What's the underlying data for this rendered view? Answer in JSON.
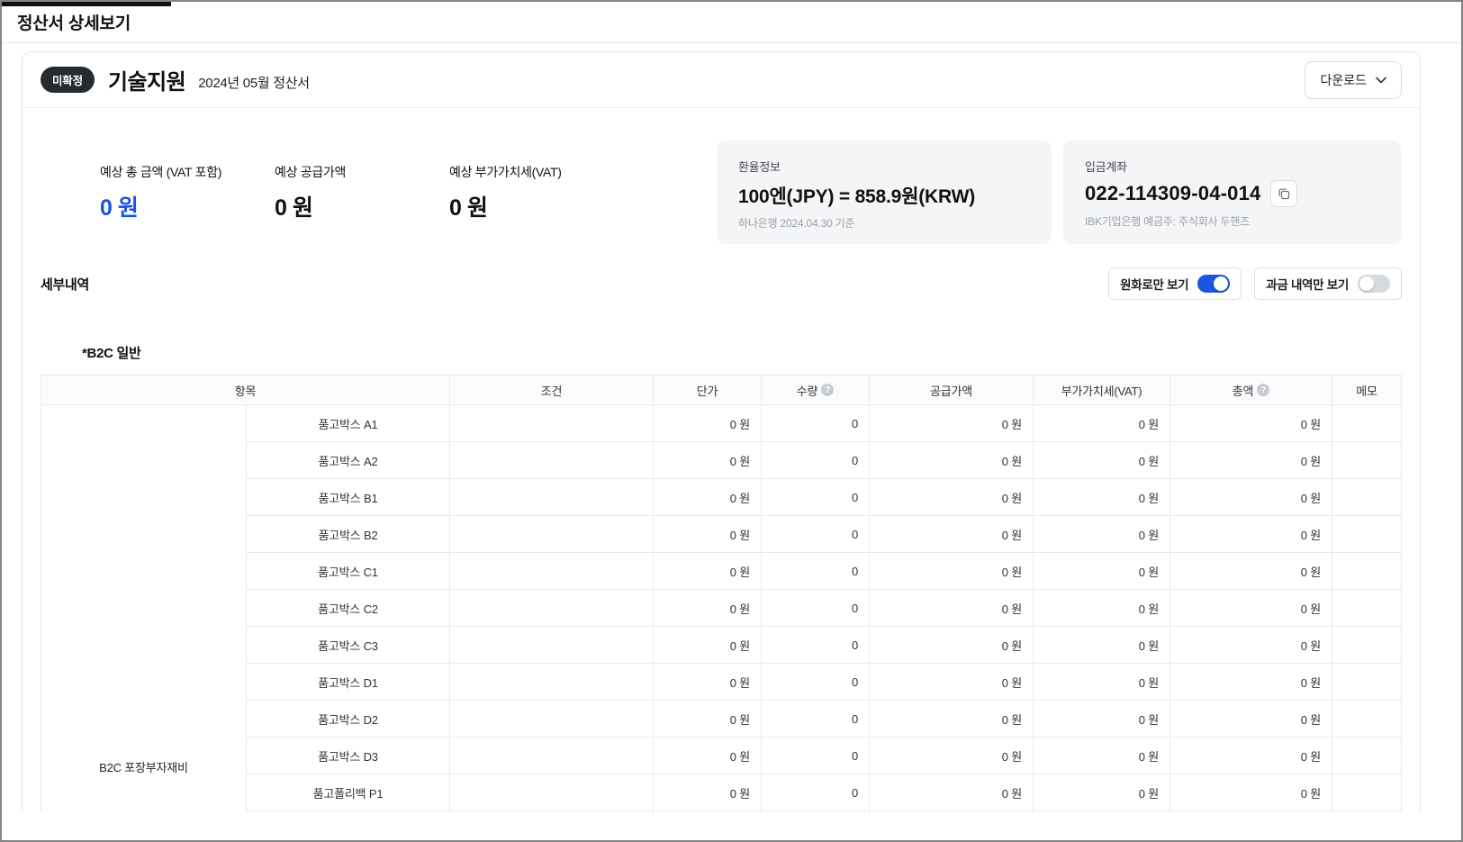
{
  "colors": {
    "accent": "#1b55e2",
    "badge_bg": "#262b31",
    "toggle_off": "#d7dbe0"
  },
  "page": {
    "title": "정산서 상세보기"
  },
  "header": {
    "badge": "미확정",
    "title": "기술지원",
    "subtitle": "2024년 05월 정산서",
    "download_label": "다운로드"
  },
  "summary": {
    "items": [
      {
        "label": "예상 총 금액 (VAT 포함)",
        "value": "0 원"
      },
      {
        "label": "예상 공급가액",
        "value": "0 원"
      },
      {
        "label": "예상 부가가치세(VAT)",
        "value": "0 원"
      }
    ],
    "exchange": {
      "label": "환율정보",
      "value": "100엔(JPY) = 858.9원(KRW)",
      "note": "하나은행 2024.04.30 기준"
    },
    "account": {
      "label": "입금계좌",
      "value": "022-114309-04-014",
      "note": "IBK기업은행 예금주: 주식회사 두핸즈"
    }
  },
  "details": {
    "title": "세부내역",
    "toggles": [
      {
        "label": "원화로만 보기",
        "on": true
      },
      {
        "label": "과금 내역만 보기",
        "on": false
      }
    ],
    "section_title": "*B2C 일반"
  },
  "icons": {
    "help_glyph": "?"
  },
  "table": {
    "headers": [
      "항목",
      "조건",
      "단가",
      "수량",
      "공급가액",
      "부가가치세(VAT)",
      "총액",
      "메모"
    ],
    "group_label": "B2C 포장부자재비",
    "rows": [
      {
        "item": "품고박스 A1",
        "condition": "",
        "unit_price": "0 원",
        "quantity": "0",
        "supply_price": "0 원",
        "vat": "0 원",
        "total": "0 원",
        "memo": ""
      },
      {
        "item": "품고박스 A2",
        "condition": "",
        "unit_price": "0 원",
        "quantity": "0",
        "supply_price": "0 원",
        "vat": "0 원",
        "total": "0 원",
        "memo": ""
      },
      {
        "item": "품고박스 B1",
        "condition": "",
        "unit_price": "0 원",
        "quantity": "0",
        "supply_price": "0 원",
        "vat": "0 원",
        "total": "0 원",
        "memo": ""
      },
      {
        "item": "품고박스 B2",
        "condition": "",
        "unit_price": "0 원",
        "quantity": "0",
        "supply_price": "0 원",
        "vat": "0 원",
        "total": "0 원",
        "memo": ""
      },
      {
        "item": "품고박스 C1",
        "condition": "",
        "unit_price": "0 원",
        "quantity": "0",
        "supply_price": "0 원",
        "vat": "0 원",
        "total": "0 원",
        "memo": ""
      },
      {
        "item": "품고박스 C2",
        "condition": "",
        "unit_price": "0 원",
        "quantity": "0",
        "supply_price": "0 원",
        "vat": "0 원",
        "total": "0 원",
        "memo": ""
      },
      {
        "item": "품고박스 C3",
        "condition": "",
        "unit_price": "0 원",
        "quantity": "0",
        "supply_price": "0 원",
        "vat": "0 원",
        "total": "0 원",
        "memo": ""
      },
      {
        "item": "품고박스 D1",
        "condition": "",
        "unit_price": "0 원",
        "quantity": "0",
        "supply_price": "0 원",
        "vat": "0 원",
        "total": "0 원",
        "memo": ""
      },
      {
        "item": "품고박스 D2",
        "condition": "",
        "unit_price": "0 원",
        "quantity": "0",
        "supply_price": "0 원",
        "vat": "0 원",
        "total": "0 원",
        "memo": ""
      },
      {
        "item": "품고박스 D3",
        "condition": "",
        "unit_price": "0 원",
        "quantity": "0",
        "supply_price": "0 원",
        "vat": "0 원",
        "total": "0 원",
        "memo": ""
      },
      {
        "item": "품고폴리백 P1",
        "condition": "",
        "unit_price": "0 원",
        "quantity": "0",
        "supply_price": "0 원",
        "vat": "0 원",
        "total": "0 원",
        "memo": ""
      }
    ]
  }
}
